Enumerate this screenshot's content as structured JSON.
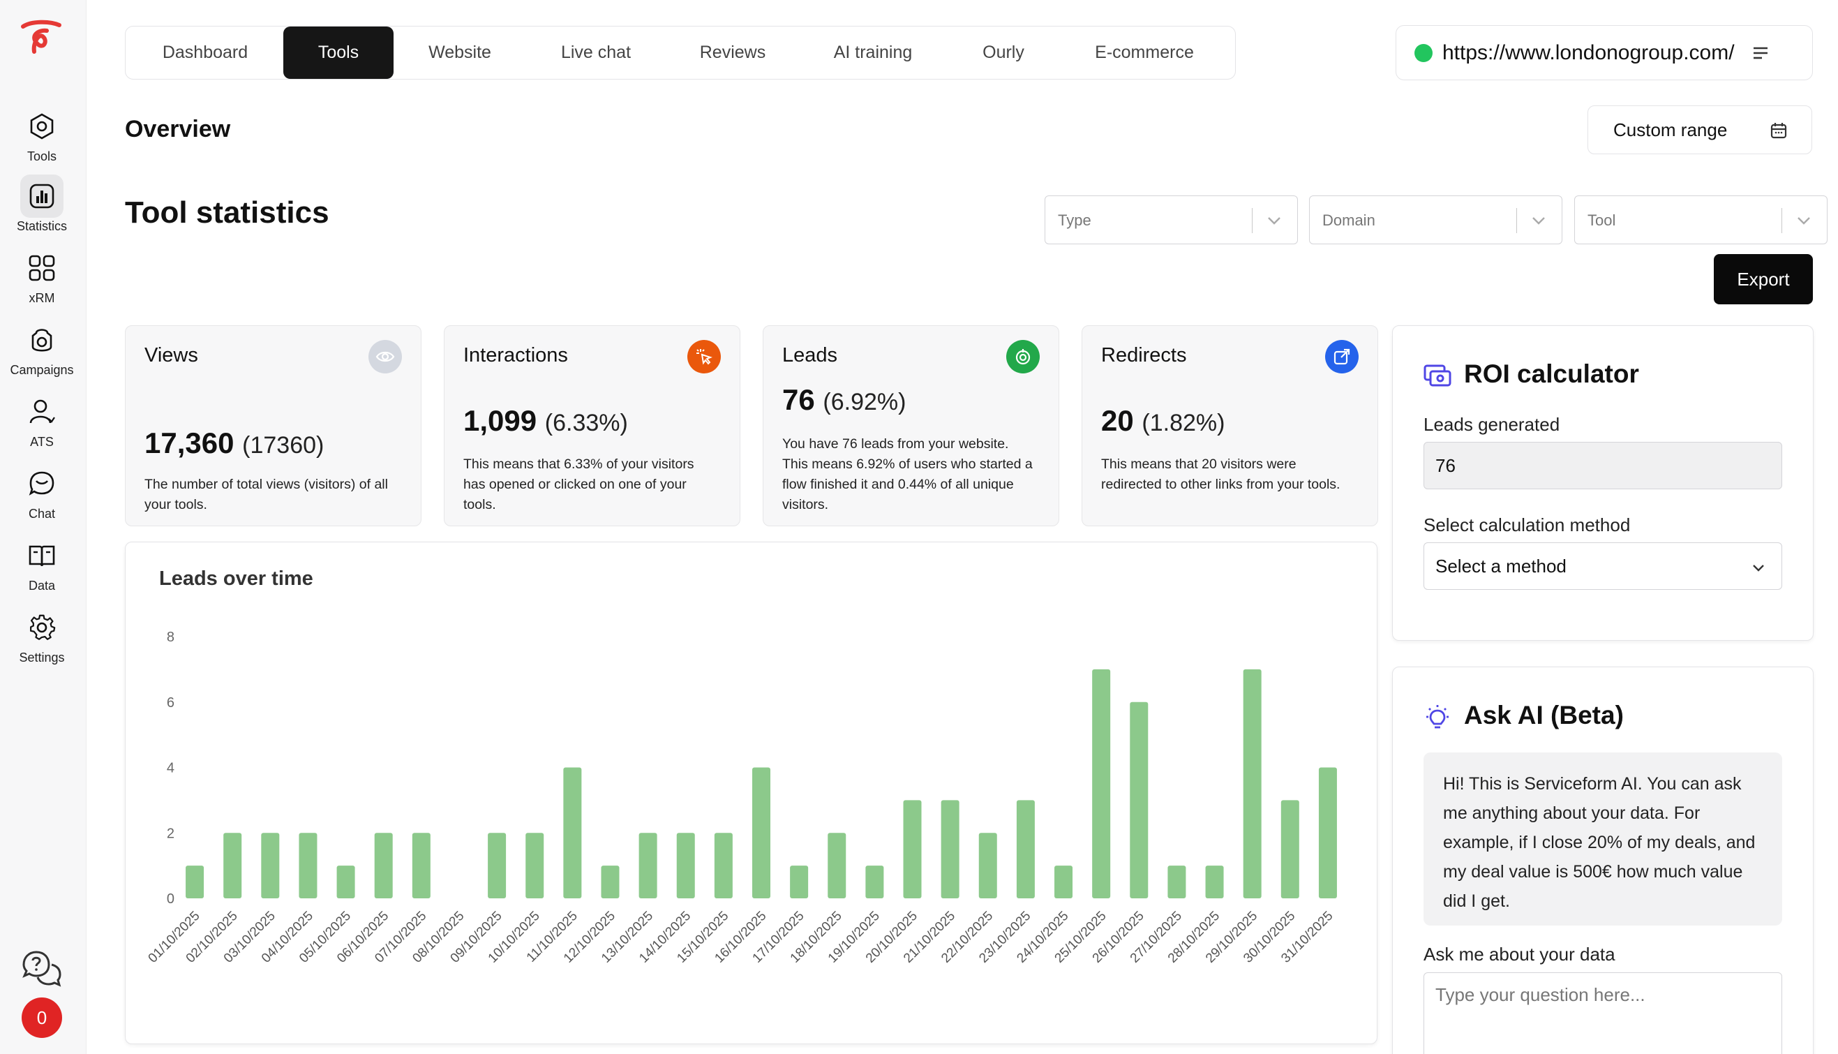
{
  "sidebar": {
    "items": [
      {
        "label": "Tools",
        "icon": "hexagon-gear-icon"
      },
      {
        "label": "Statistics",
        "icon": "bar-chart-icon"
      },
      {
        "label": "xRM",
        "icon": "grid-icon"
      },
      {
        "label": "Campaigns",
        "icon": "campaign-icon"
      },
      {
        "label": "ATS",
        "icon": "user-icon"
      },
      {
        "label": "Chat",
        "icon": "chat-icon"
      },
      {
        "label": "Data",
        "icon": "book-icon"
      },
      {
        "label": "Settings",
        "icon": "gear-icon"
      }
    ],
    "notifications_count": "0"
  },
  "tabs": [
    "Dashboard",
    "Tools",
    "Website",
    "Live chat",
    "Reviews",
    "AI training",
    "Ourly",
    "E-commerce"
  ],
  "active_tab": "Tools",
  "site": {
    "url": "https://www.londonogroup.com/",
    "status_color": "#22c55e"
  },
  "overview": {
    "title": "Overview",
    "custom_range_label": "Custom range"
  },
  "tool_statistics": {
    "title": "Tool statistics",
    "filters": [
      {
        "placeholder": "Type"
      },
      {
        "placeholder": "Domain"
      },
      {
        "placeholder": "Tool"
      }
    ],
    "export_label": "Export"
  },
  "stats": [
    {
      "title": "Views",
      "value": "17,360",
      "sub": "(17360)",
      "description": "The number of total views (visitors) of all your tools.",
      "icon": "eye-icon",
      "icon_color": "#d4d8e0"
    },
    {
      "title": "Interactions",
      "value": "1,099",
      "sub": "(6.33%)",
      "description": "This means that 6.33% of your visitors has opened or clicked on one of your tools.",
      "icon": "cursor-click-icon",
      "icon_color": "#ea580c"
    },
    {
      "title": "Leads",
      "value": "76",
      "sub": "(6.92%)",
      "description": "You have 76 leads from your website. This means 6.92% of users who started a flow finished it and 0.44% of all unique visitors.",
      "icon": "target-icon",
      "icon_color": "#22a84a"
    },
    {
      "title": "Redirects",
      "value": "20",
      "sub": "(1.82%)",
      "description": "This means that 20 visitors were redirected to other links from your tools.",
      "icon": "external-link-icon",
      "icon_color": "#2563eb"
    }
  ],
  "chart_data": {
    "type": "bar",
    "title": "Leads over time",
    "categories": [
      "01/10/2025",
      "02/10/2025",
      "03/10/2025",
      "04/10/2025",
      "05/10/2025",
      "06/10/2025",
      "07/10/2025",
      "08/10/2025",
      "09/10/2025",
      "10/10/2025",
      "11/10/2025",
      "12/10/2025",
      "13/10/2025",
      "14/10/2025",
      "15/10/2025",
      "16/10/2025",
      "17/10/2025",
      "18/10/2025",
      "19/10/2025",
      "20/10/2025",
      "21/10/2025",
      "22/10/2025",
      "23/10/2025",
      "24/10/2025",
      "25/10/2025",
      "26/10/2025",
      "27/10/2025",
      "28/10/2025",
      "29/10/2025",
      "30/10/2025",
      "31/10/2025"
    ],
    "values": [
      1,
      2,
      2,
      2,
      1,
      2,
      2,
      0,
      2,
      2,
      4,
      1,
      2,
      2,
      2,
      4,
      1,
      2,
      1,
      3,
      3,
      2,
      3,
      1,
      7,
      6,
      1,
      1,
      7,
      3,
      4
    ],
    "yticks": [
      "0",
      "2",
      "4",
      "6",
      "8"
    ],
    "ylim": [
      0,
      8
    ],
    "bar_color": "#8cc98b",
    "grid": false
  },
  "roi": {
    "title": "ROI calculator",
    "leads_label": "Leads generated",
    "leads_value": "76",
    "method_label": "Select calculation method",
    "method_value": "Select a method"
  },
  "ask_ai": {
    "title": "Ask AI (Beta)",
    "message": "Hi! This is Serviceform AI. You can ask me anything about your data. For example, if I close 20% of my deals, and my deal value is 500€ how much value did I get.",
    "question_label": "Ask me about your data",
    "question_placeholder": "Type your question here..."
  }
}
